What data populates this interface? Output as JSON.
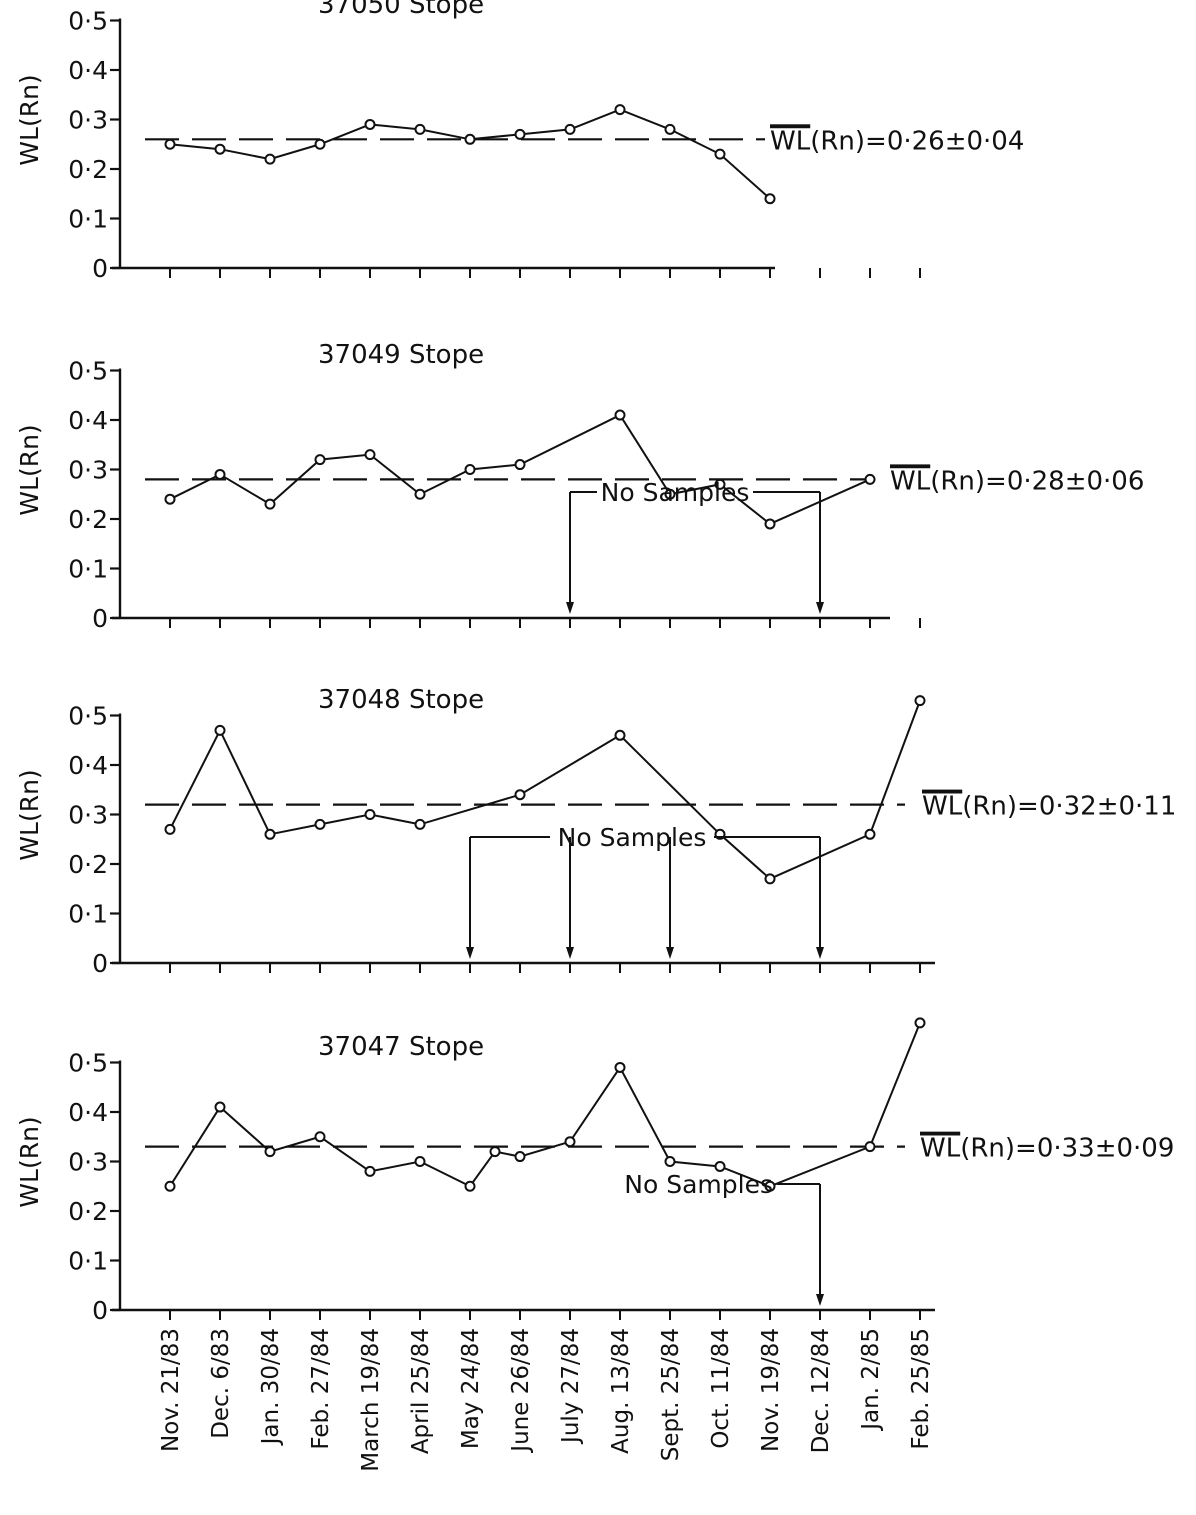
{
  "chart_data": {
    "type": "line",
    "ylabel": "WL(Rn)",
    "y_tick_labels": [
      "0",
      "0·1",
      "0·2",
      "0·3",
      "0·4",
      "0·5"
    ],
    "ylim": [
      0,
      0.5
    ],
    "categories": [
      "Nov. 21/83",
      "Dec. 6/83",
      "Jan. 30/84",
      "Feb. 27/84",
      "March 19/84",
      "April 25/84",
      "May 24/84",
      "June 26/84",
      "July 27/84",
      "Aug. 13/84",
      "Sept. 25/84",
      "Oct. 11/84",
      "Nov. 19/84",
      "Dec. 12/84",
      "Jan. 2/85",
      "Feb. 25/85"
    ],
    "panels": [
      {
        "title": "37050 Stope",
        "mean": 0.26,
        "mean_label": "(Rn)=0·26±0·04",
        "mean_overline": "WL",
        "values": [
          0.25,
          0.24,
          0.22,
          0.25,
          0.29,
          0.28,
          0.26,
          0.27,
          0.28,
          0.32,
          0.28,
          0.23,
          0.14,
          null,
          null,
          null
        ],
        "no_samples_label": "",
        "no_samples_at": []
      },
      {
        "title": "37049 Stope",
        "mean": 0.28,
        "mean_label": "(Rn)=0·28±0·06",
        "mean_overline": "WL",
        "values": [
          0.24,
          0.29,
          0.23,
          0.32,
          0.33,
          0.25,
          0.3,
          0.31,
          null,
          0.41,
          0.25,
          0.27,
          0.19,
          null,
          0.28,
          null
        ],
        "no_samples_label": "No Samples",
        "no_samples_at": [
          "July 27/84",
          "Dec. 12/84"
        ]
      },
      {
        "title": "37048 Stope",
        "mean": 0.32,
        "mean_label": "(Rn)=0·32±0·11",
        "mean_overline": "WL",
        "values": [
          0.27,
          0.47,
          0.26,
          0.28,
          0.3,
          0.28,
          null,
          0.34,
          null,
          0.46,
          null,
          0.26,
          0.17,
          null,
          0.26,
          0.53
        ],
        "no_samples_label": "No Samples",
        "no_samples_at": [
          "May 24/84",
          "July 27/84",
          "Sept. 25/84",
          "Dec. 12/84"
        ]
      },
      {
        "title": "37047 Stope",
        "mean": 0.33,
        "mean_label": "(Rn)=0·33±0·09",
        "mean_overline": "WL",
        "values": [
          0.25,
          0.41,
          0.32,
          0.35,
          0.28,
          0.3,
          0.25,
          0.31,
          0.34,
          0.49,
          0.3,
          0.29,
          0.25,
          null,
          0.33,
          0.58
        ],
        "extra_points": [
          {
            "x": "June 26/84",
            "offset": -0.5,
            "value": 0.32
          }
        ],
        "no_samples_label": "No Samples",
        "no_samples_at": [
          "Dec. 12/84"
        ]
      }
    ]
  }
}
